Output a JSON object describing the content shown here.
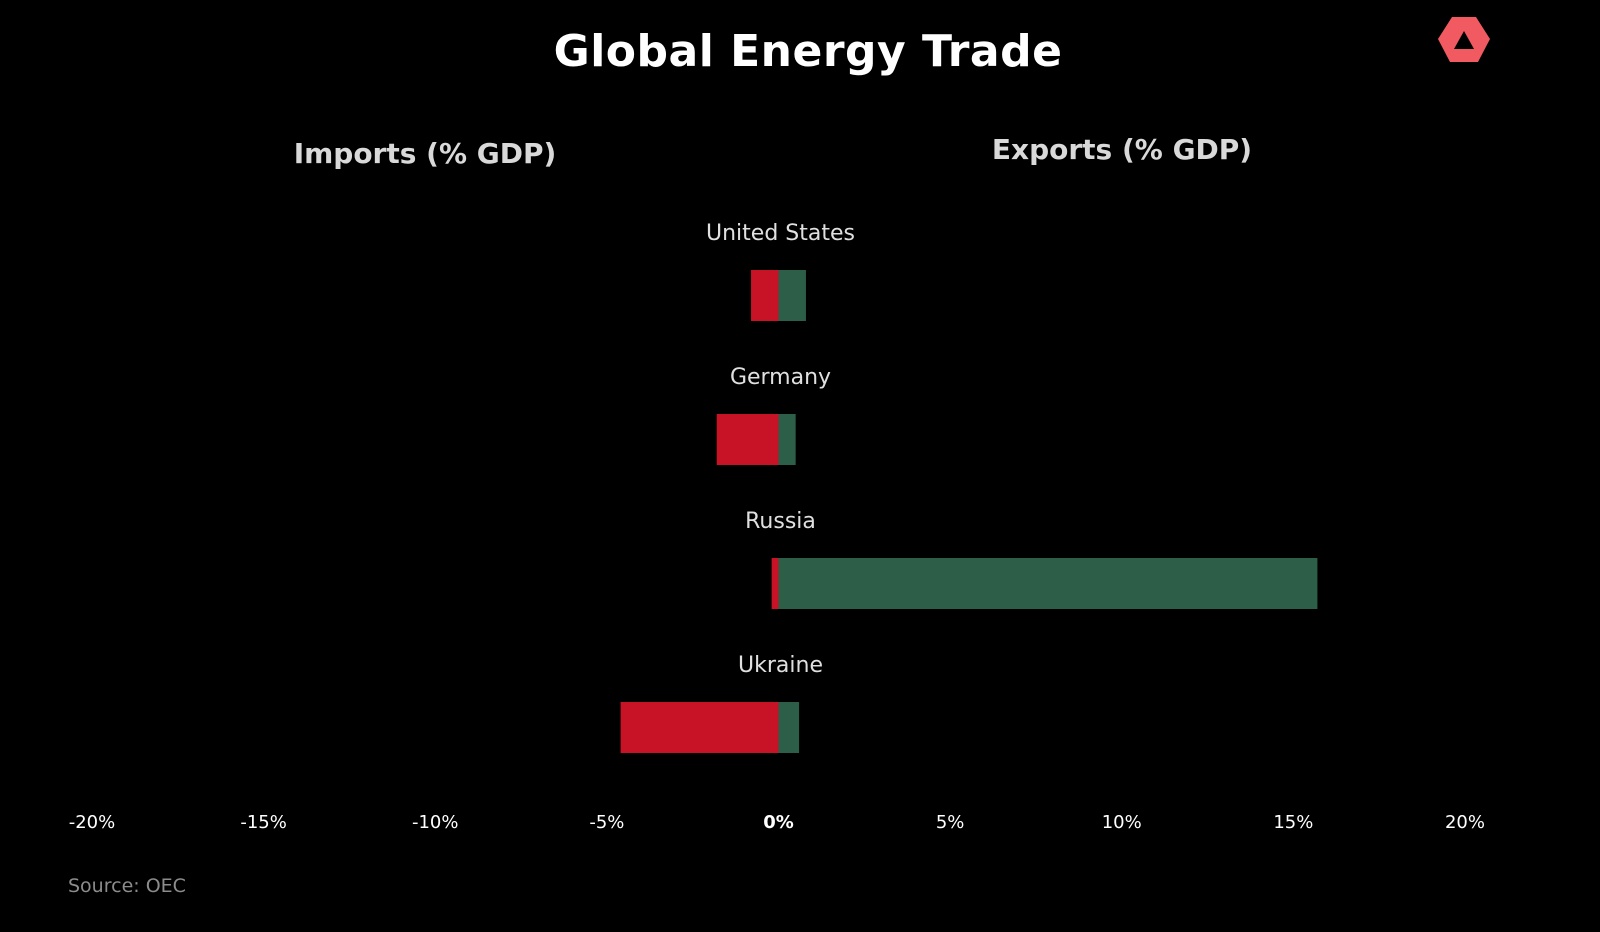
{
  "header": {
    "title": "Global Energy Trade",
    "logo_icon": "triangle-logo-icon",
    "logo_color": "#f15a60"
  },
  "panels": {
    "left_title": "Imports (% GDP)",
    "right_title": "Exports (% GDP)"
  },
  "footer": {
    "source": "Source: OEC"
  },
  "colors": {
    "background": "#000000",
    "imports": "#c81326",
    "exports": "#2c5e48",
    "category_label": "#e0e0e0",
    "tick_label": "#ffffff"
  },
  "chart_data": {
    "type": "bar",
    "orientation": "horizontal",
    "stacked": "diverging",
    "categories": [
      "United States",
      "Germany",
      "Russia",
      "Ukraine"
    ],
    "series": [
      {
        "name": "Imports (% GDP)",
        "values": [
          -0.8,
          -1.8,
          -0.2,
          -4.6
        ]
      },
      {
        "name": "Exports (% GDP)",
        "values": [
          0.8,
          0.5,
          15.7,
          0.6
        ]
      }
    ],
    "xlim": [
      -20,
      20
    ],
    "x_ticks": [
      -20,
      -15,
      -10,
      -5,
      0,
      5,
      10,
      15,
      20
    ],
    "x_tick_labels": [
      "-20%",
      "-15%",
      "-10%",
      "-5%",
      "0%",
      "5%",
      "10%",
      "15%",
      "20%"
    ],
    "grid": false,
    "legend": "none"
  }
}
